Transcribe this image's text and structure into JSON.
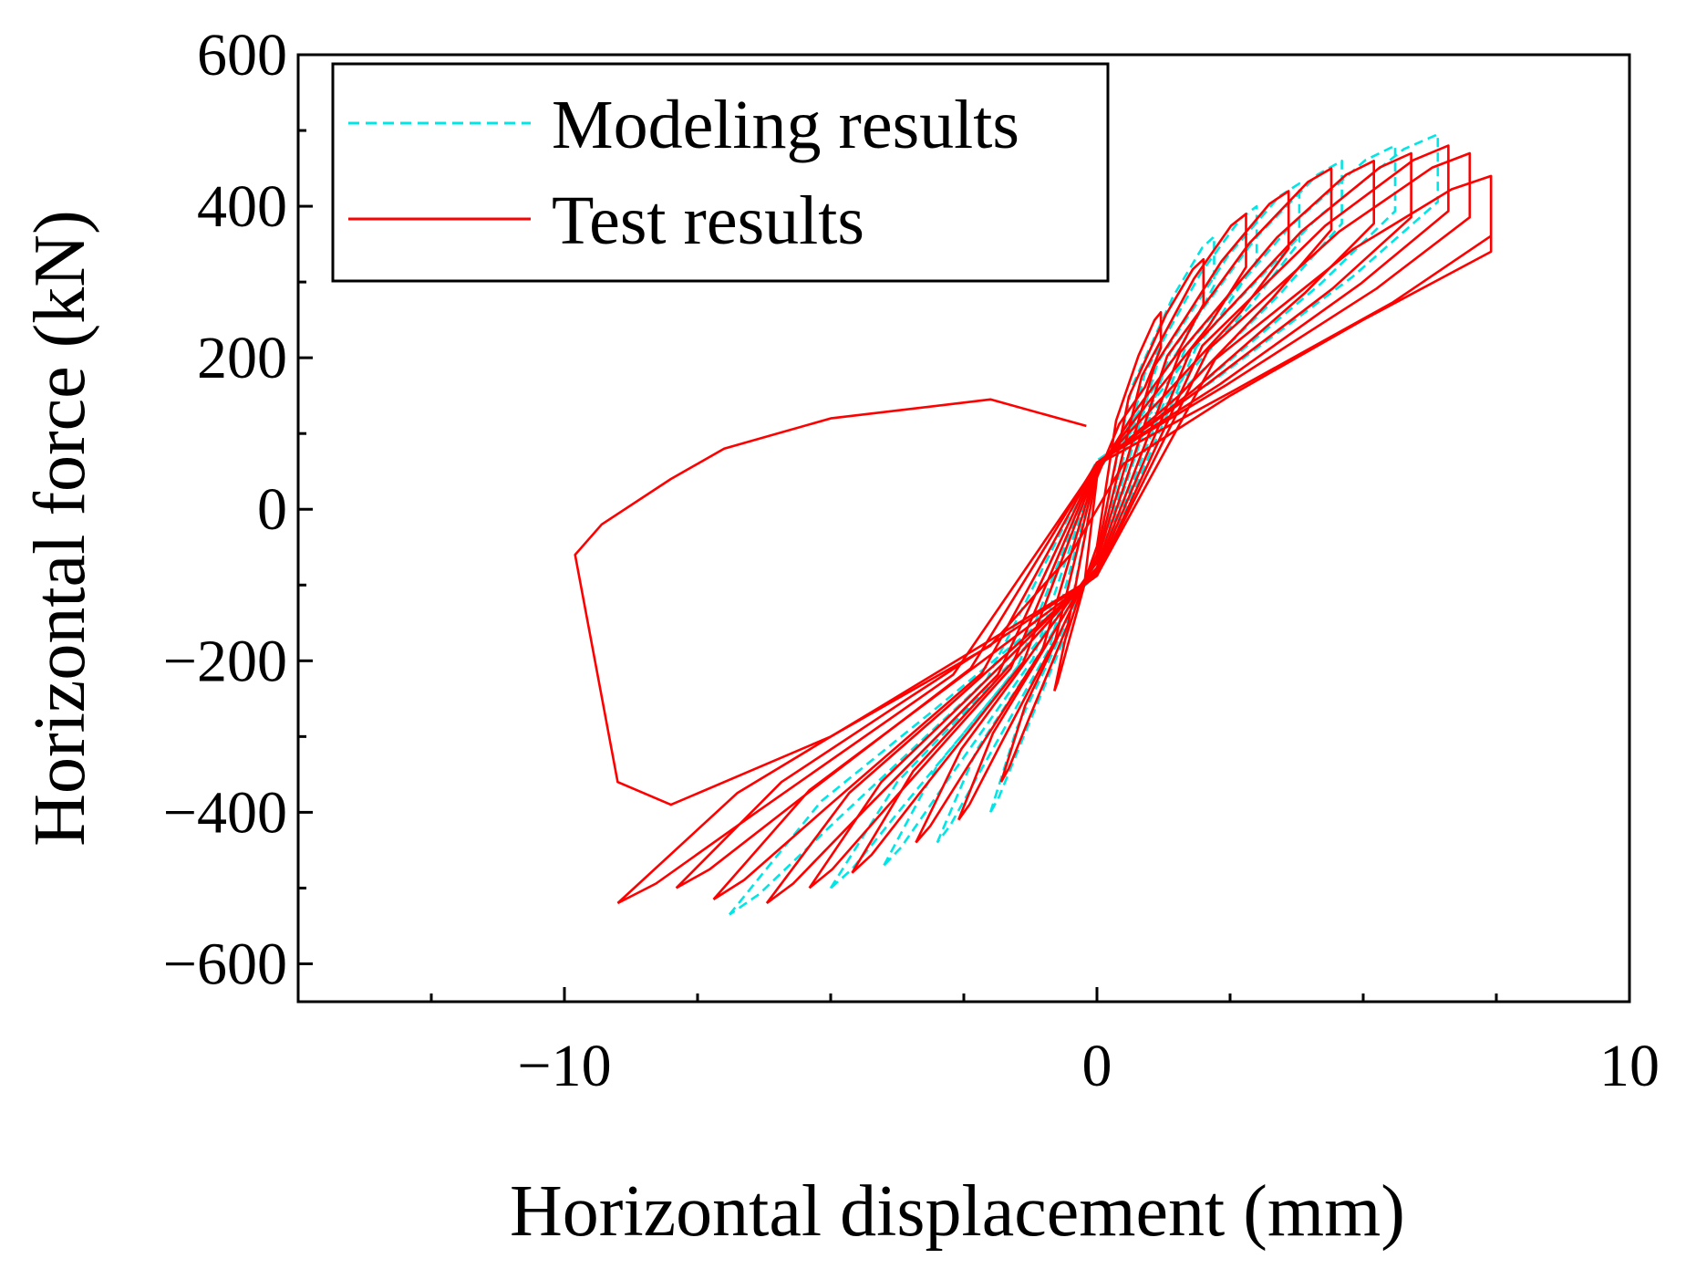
{
  "chart_data": {
    "type": "line",
    "title": "",
    "xlabel": "Horizontal displacement (mm)",
    "ylabel": "Horizontal force (kN)",
    "xlim": [
      -15,
      10
    ],
    "ylim": [
      -650,
      600
    ],
    "xticks": [
      -10,
      0,
      10
    ],
    "xtick_labels": [
      "−10",
      "0",
      "10"
    ],
    "yticks": [
      600,
      400,
      200,
      0,
      -200,
      -400,
      -600
    ],
    "ytick_labels": [
      "600",
      "400",
      "200",
      "0",
      "−200",
      "−400",
      "−600"
    ],
    "grid": false,
    "legend_position": "top-left",
    "series": [
      {
        "name": "Modeling results",
        "color": "#00e5e5",
        "style": "dashed",
        "loops": [
          {
            "peak_pos": [
              2.2,
              360
            ],
            "peak_neg": [
              -2.0,
              -400
            ],
            "base_pos": 170,
            "base_neg": -170
          },
          {
            "peak_pos": [
              3.0,
              400
            ],
            "peak_neg": [
              -3.0,
              -440
            ],
            "base_pos": 190,
            "base_neg": -200
          },
          {
            "peak_pos": [
              3.8,
              430
            ],
            "peak_neg": [
              -4.0,
              -470
            ],
            "base_pos": 200,
            "base_neg": -220
          },
          {
            "peak_pos": [
              4.6,
              460
            ],
            "peak_neg": [
              -5.0,
              -500
            ],
            "base_pos": 210,
            "base_neg": -230
          },
          {
            "peak_pos": [
              5.6,
              480
            ],
            "peak_neg": [
              -6.2,
              -520
            ],
            "base_pos": 220,
            "base_neg": -240
          },
          {
            "peak_pos": [
              6.4,
              495
            ],
            "peak_neg": [
              -6.9,
              -535
            ],
            "base_pos": 230,
            "base_neg": -250
          }
        ]
      },
      {
        "name": "Test results",
        "color": "#ff0000",
        "style": "solid",
        "loops": [
          {
            "peak_pos": [
              1.2,
              260
            ],
            "peak_neg": [
              -0.8,
              -240
            ],
            "base_pos": 150,
            "base_neg": -140
          },
          {
            "peak_pos": [
              2.0,
              330
            ],
            "peak_neg": [
              -1.8,
              -360
            ],
            "base_pos": 170,
            "base_neg": -170
          },
          {
            "peak_pos": [
              2.8,
              390
            ],
            "peak_neg": [
              -2.6,
              -410
            ],
            "base_pos": 190,
            "base_neg": -190
          },
          {
            "peak_pos": [
              3.6,
              420
            ],
            "peak_neg": [
              -3.4,
              -440
            ],
            "base_pos": 200,
            "base_neg": -200
          },
          {
            "peak_pos": [
              4.4,
              450
            ],
            "peak_neg": [
              -4.6,
              -480
            ],
            "base_pos": 200,
            "base_neg": -220
          },
          {
            "peak_pos": [
              5.2,
              460
            ],
            "peak_neg": [
              -5.4,
              -500
            ],
            "base_pos": 210,
            "base_neg": -230
          },
          {
            "peak_pos": [
              5.9,
              470
            ],
            "peak_neg": [
              -6.2,
              -520
            ],
            "base_pos": 220,
            "base_neg": -240
          },
          {
            "peak_pos": [
              6.6,
              480
            ],
            "peak_neg": [
              -7.2,
              -515
            ],
            "base_pos": 220,
            "base_neg": -250
          },
          {
            "peak_pos": [
              7.0,
              470
            ],
            "peak_neg": [
              -7.9,
              -500
            ],
            "base_pos": 220,
            "base_neg": -250
          },
          {
            "peak_pos": [
              7.4,
              440
            ],
            "peak_neg": [
              -9.0,
              -520
            ],
            "base_pos": 210,
            "base_neg": -250
          }
        ],
        "failure_path": [
          [
            7.4,
            440
          ],
          [
            7.4,
            340
          ],
          [
            5.0,
            250
          ],
          [
            2.5,
            150
          ],
          [
            0.5,
            60
          ],
          [
            -0.5,
            -60
          ],
          [
            -2.0,
            -180
          ],
          [
            -5.0,
            -300
          ],
          [
            -8.0,
            -390
          ],
          [
            -9.0,
            -360
          ],
          [
            -9.8,
            -60
          ],
          [
            -9.3,
            -20
          ],
          [
            -8.0,
            40
          ],
          [
            -7.0,
            80
          ],
          [
            -5.0,
            120
          ],
          [
            -2.0,
            145
          ],
          [
            -0.2,
            110
          ]
        ]
      }
    ]
  }
}
